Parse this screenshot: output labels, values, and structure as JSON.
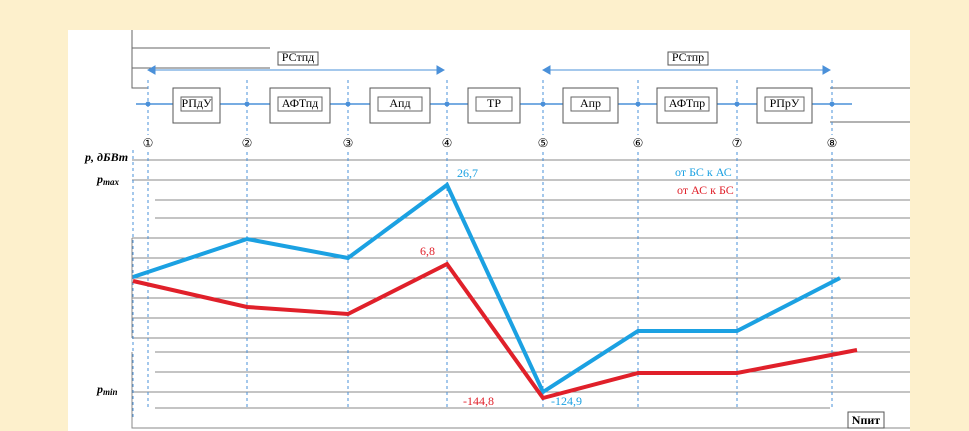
{
  "spans": [
    "РСтпд",
    "РСтпр"
  ],
  "blocks": [
    "РПдУ",
    "АФТпд",
    "Апд",
    "ТР",
    "Апр",
    "АФТпр",
    "РПрУ"
  ],
  "stations": [
    "①",
    "②",
    "③",
    "④",
    "⑤",
    "⑥",
    "⑦",
    "⑧"
  ],
  "axis": {
    "y_label": "p, дБВт",
    "pmax": {
      "main": "p",
      "sub": "max"
    },
    "pmin": {
      "main": "p",
      "sub": "min"
    },
    "x_label": "Nпит"
  },
  "labels": [
    "26,7",
    "6,8",
    "-144,8",
    "-124,9"
  ],
  "legend": [
    "от БС к АС",
    "от АС к БС"
  ]
}
